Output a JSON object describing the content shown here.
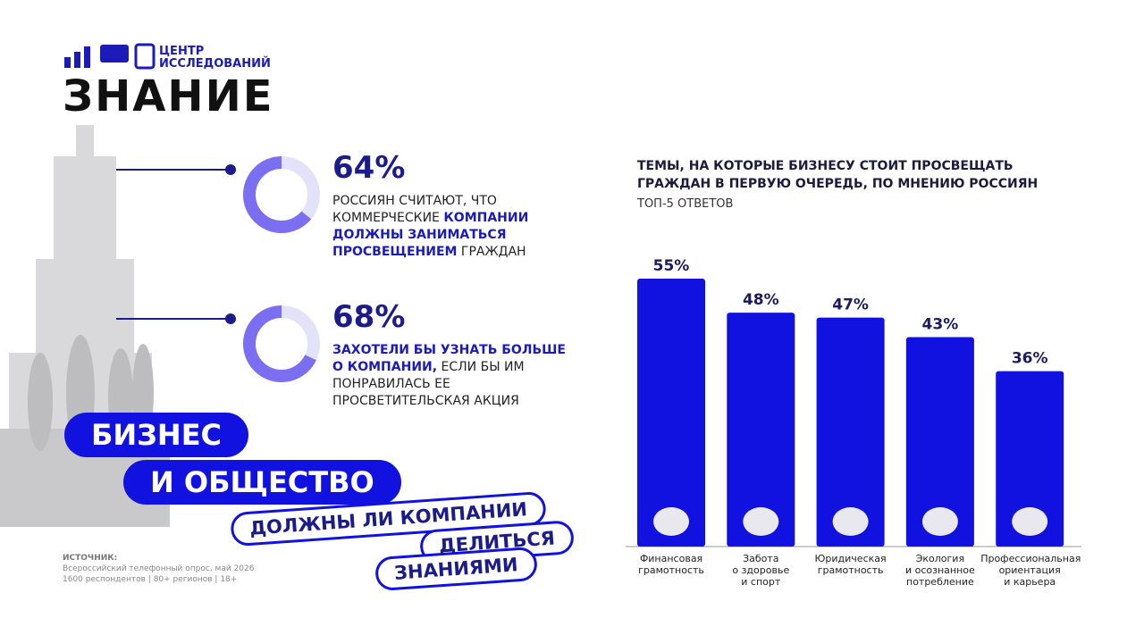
{
  "header": {
    "logo_top": "ЦЕНТР\nИССЛЕДОВАНИЙ",
    "logo_main": "ЗНАНИЕ"
  },
  "stats": [
    {
      "value": 64,
      "value_label": "64%",
      "parts": [
        {
          "text": "РОССИЯН СЧИТАЮТ, ЧТО КОММЕРЧЕСКИЕ ",
          "strong": false
        },
        {
          "text": "КОМПАНИИ ДОЛЖНЫ ЗАНИМАТЬСЯ ПРОСВЕЩЕНИЕМ",
          "strong": true
        },
        {
          "text": " ГРАЖДАН",
          "strong": false
        }
      ]
    },
    {
      "value": 68,
      "value_label": "68%",
      "parts": [
        {
          "text": "ЗАХОТЕЛИ БЫ УЗНАТЬ БОЛЬШЕ О КОМПАНИИ,",
          "strong": true
        },
        {
          "text": " ЕСЛИ БЫ ИМ ПОНРАВИЛАСЬ ЕЕ ПРОСВЕТИТЕЛЬСКАЯ АКЦИЯ",
          "strong": false
        }
      ]
    }
  ],
  "banner": {
    "line1": "БИЗНЕС",
    "line2": "И ОБЩЕСТВО",
    "question1": "ДОЛЖНЫ ЛИ КОМПАНИИ",
    "question2": "ДЕЛИТЬСЯ",
    "question3": "ЗНАНИЯМИ"
  },
  "source": {
    "label": "ИСТОЧНИК:",
    "line1": "Всероссийский телефонный опрос, май 2026",
    "line2": "1600 респондентов | 80+ регионов | 18+"
  },
  "chart_data": {
    "type": "bar",
    "title": "ТЕМЫ, НА КОТОРЫЕ БИЗНЕСУ СТОИТ ПРОСВЕЩАТЬ\nГРАЖДАН В ПЕРВУЮ ОЧЕРЕДЬ, ПО МНЕНИЮ РОССИЯН",
    "subtitle": "ТОП-5 ОТВЕТОВ",
    "categories": [
      "Финансовая\nграмотность",
      "Забота\nо здоровье\nи спорт",
      "Юридическая\nграмотность",
      "Экология\nи осознанное\nпотребление",
      "Профессиональная\nориентация\nи карьера"
    ],
    "values": [
      55,
      48,
      47,
      43,
      36
    ],
    "value_labels": [
      "55%",
      "48%",
      "47%",
      "43%",
      "36%"
    ],
    "color": "#1212e0"
  }
}
